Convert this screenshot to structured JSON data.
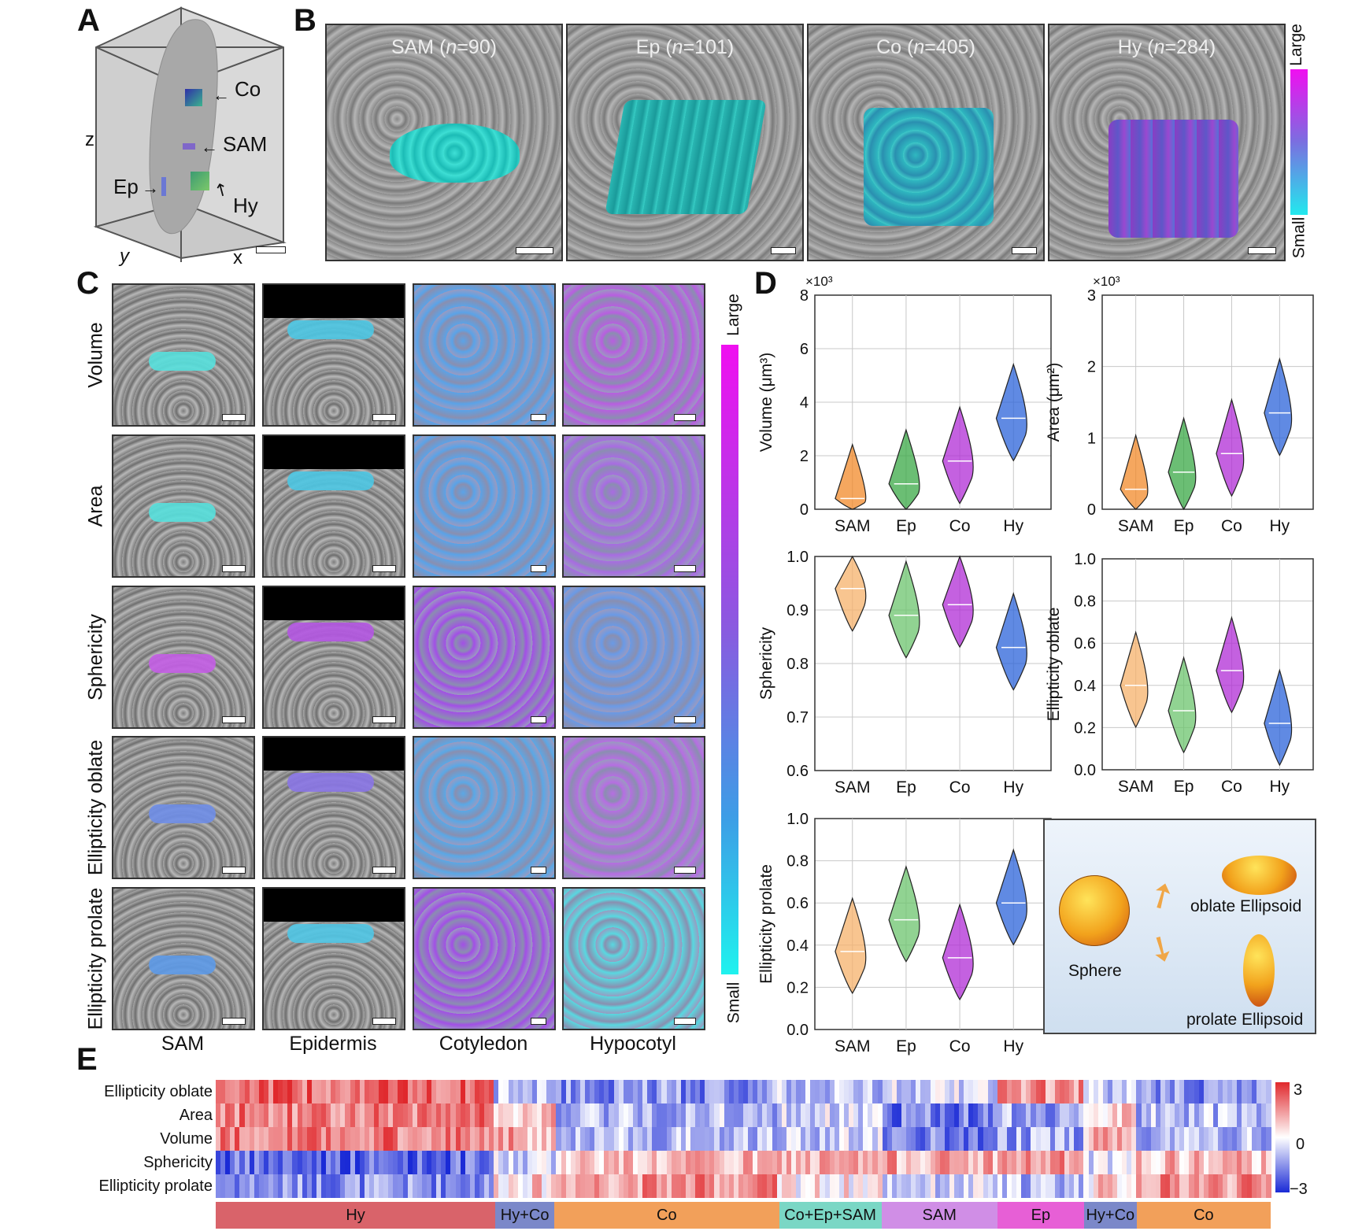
{
  "panels": {
    "a": "A",
    "b": "B",
    "c": "C",
    "d": "D",
    "e": "E"
  },
  "panel_a": {
    "axis_z": "z",
    "axis_y": "y",
    "axis_x": "x",
    "labels": {
      "co": "Co",
      "sam": "SAM",
      "ep": "Ep",
      "hy": "Hy"
    }
  },
  "panel_b": {
    "tiles": [
      {
        "name": "SAM",
        "n": "90"
      },
      {
        "name": "Ep",
        "n": "101"
      },
      {
        "name": "Co",
        "n": "405"
      },
      {
        "name": "Hy",
        "n": "284"
      }
    ],
    "n_prefix": "n",
    "scale_large": "Large",
    "scale_small": "Small"
  },
  "panel_c": {
    "rows": [
      "Volume",
      "Area",
      "Sphericity",
      "Ellipticity oblate",
      "Ellipticity prolate"
    ],
    "cols": [
      "SAM",
      "Epidermis",
      "Cotyledon",
      "Hypocotyl"
    ],
    "scale_large": "Large",
    "scale_small": "Small"
  },
  "chart_data": [
    {
      "type": "violin",
      "ylabel": "Volume (μm³)",
      "multiplier": "×10³",
      "ylim": [
        0,
        8
      ],
      "yticks": [
        "0",
        "2",
        "4",
        "6",
        "8"
      ],
      "categories": [
        "SAM",
        "Ep",
        "Co",
        "Hy"
      ],
      "medians": [
        0.4,
        0.95,
        1.8,
        3.4
      ],
      "colors": [
        "#f28a2a",
        "#3aa845",
        "#b02cd6",
        "#2b63d9"
      ]
    },
    {
      "type": "violin",
      "ylabel": "Area (μm²)",
      "multiplier": "×10³",
      "ylim": [
        0,
        3
      ],
      "yticks": [
        "0",
        "1",
        "2",
        "3"
      ],
      "categories": [
        "SAM",
        "Ep",
        "Co",
        "Hy"
      ],
      "medians": [
        0.28,
        0.52,
        0.78,
        1.35
      ],
      "colors": [
        "#f28a2a",
        "#3aa845",
        "#b02cd6",
        "#2b63d9"
      ]
    },
    {
      "type": "violin",
      "ylabel": "Sphericity",
      "ylim": [
        0.6,
        1.0
      ],
      "yticks": [
        "0.6",
        "0.7",
        "0.8",
        "0.9",
        "1.0"
      ],
      "categories": [
        "SAM",
        "Ep",
        "Co",
        "Hy"
      ],
      "medians": [
        0.94,
        0.89,
        0.91,
        0.83
      ],
      "colors": [
        "#f5b26b",
        "#6cc46e",
        "#b02cd6",
        "#2b63d9"
      ]
    },
    {
      "type": "violin",
      "ylabel": "Ellipticity oblate",
      "ylim": [
        0,
        1.0
      ],
      "yticks": [
        "0.0",
        "0.2",
        "0.4",
        "0.6",
        "0.8",
        "1.0"
      ],
      "categories": [
        "SAM",
        "Ep",
        "Co",
        "Hy"
      ],
      "medians": [
        0.4,
        0.28,
        0.47,
        0.22
      ],
      "colors": [
        "#f5b26b",
        "#6cc46e",
        "#b02cd6",
        "#2b63d9"
      ]
    },
    {
      "type": "violin",
      "ylabel": "Ellipticity prolate",
      "ylim": [
        0,
        1.0
      ],
      "yticks": [
        "0.0",
        "0.2",
        "0.4",
        "0.6",
        "0.8",
        "1.0"
      ],
      "categories": [
        "SAM",
        "Ep",
        "Co",
        "Hy"
      ],
      "medians": [
        0.37,
        0.52,
        0.34,
        0.6
      ],
      "colors": [
        "#f5b26b",
        "#6cc46e",
        "#b02cd6",
        "#2b63d9"
      ]
    }
  ],
  "shape_legend": {
    "sphere": "Sphere",
    "oblate": "oblate Ellipsoid",
    "prolate": "prolate Ellipsoid"
  },
  "panel_e": {
    "rows": [
      "Ellipticity oblate",
      "Area",
      "Volume",
      "Sphericity",
      "Ellipticity prolate"
    ],
    "colorbar": [
      "3",
      "0",
      "−3"
    ],
    "clusters": [
      {
        "label": "Hy",
        "frac": 0.265,
        "color": "#d9636a"
      },
      {
        "label": "Hy+Co",
        "frac": 0.056,
        "color": "#7b88c9"
      },
      {
        "label": "Co",
        "frac": 0.213,
        "color": "#f2a05a"
      },
      {
        "label": "Co+Ep+SAM",
        "frac": 0.097,
        "color": "#7ad7c5"
      },
      {
        "label": "SAM",
        "frac": 0.11,
        "color": "#d08ee6"
      },
      {
        "label": "Ep",
        "frac": 0.082,
        "color": "#e75fd6"
      },
      {
        "label": "Hy+Co",
        "frac": 0.05,
        "color": "#7b88c9"
      },
      {
        "label": "Co",
        "frac": 0.127,
        "color": "#f2a05a"
      }
    ]
  }
}
